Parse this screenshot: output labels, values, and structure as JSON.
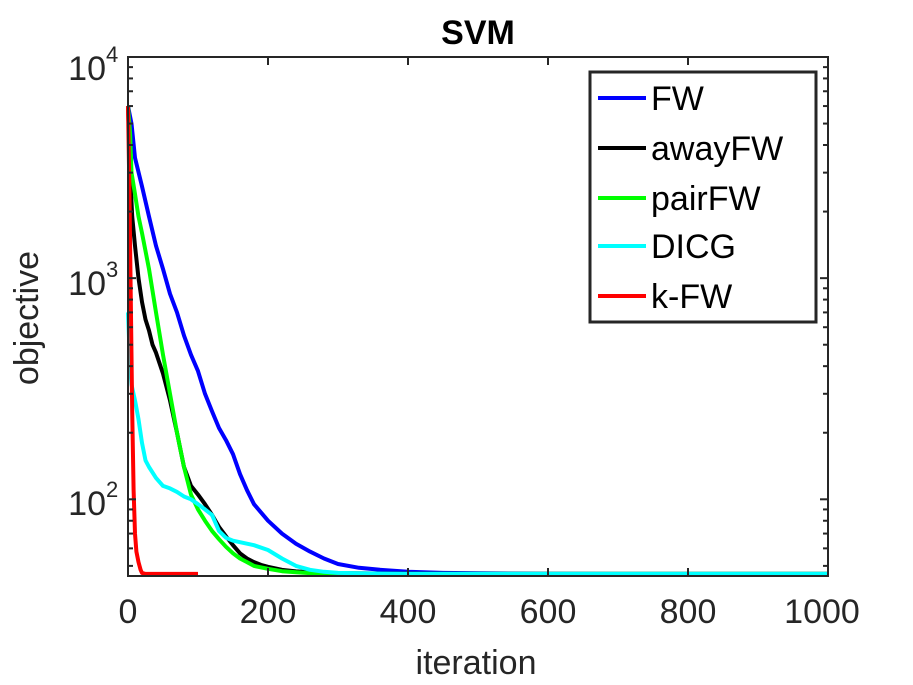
{
  "chart_data": {
    "type": "line",
    "title": "SVM",
    "xlabel": "iteration",
    "ylabel": "objective",
    "yscale": "log",
    "xlim": [
      0,
      1000
    ],
    "ylim": [
      45,
      10000
    ],
    "x_ticks": [
      0,
      200,
      400,
      600,
      800,
      1000
    ],
    "x_tick_labels": [
      "0",
      "200",
      "400",
      "600",
      "800",
      "1000"
    ],
    "y_ticks": [
      {
        "value": 100,
        "base": "10",
        "exp": "2"
      },
      {
        "value": 1000,
        "base": "10",
        "exp": "3"
      },
      {
        "value": 10000,
        "base": "10",
        "exp": "4"
      }
    ],
    "legend_position": "top-right",
    "series": [
      {
        "name": "FW",
        "color": "#0000ff",
        "x": [
          0,
          5,
          10,
          20,
          30,
          40,
          50,
          60,
          70,
          80,
          90,
          100,
          110,
          120,
          130,
          140,
          150,
          160,
          170,
          180,
          200,
          220,
          240,
          260,
          280,
          300,
          330,
          360,
          400,
          450,
          500,
          600,
          700,
          800,
          900,
          1000
        ],
        "y": [
          6000,
          5000,
          3500,
          2600,
          1900,
          1400,
          1100,
          850,
          700,
          550,
          450,
          380,
          300,
          250,
          210,
          185,
          160,
          130,
          110,
          95,
          80,
          70,
          63,
          58,
          54,
          51,
          49,
          48,
          47,
          46.5,
          46.3,
          46.1,
          46,
          46,
          46,
          46
        ]
      },
      {
        "name": "awayFW",
        "color": "#000000",
        "x": [
          0,
          3,
          6,
          10,
          15,
          20,
          25,
          30,
          35,
          40,
          50,
          60,
          70,
          80,
          90,
          100,
          110,
          120,
          130,
          140,
          150,
          160,
          170,
          180,
          190,
          200,
          220,
          240,
          260,
          300,
          400,
          500,
          1000
        ],
        "y": [
          6000,
          3000,
          1900,
          1400,
          1000,
          780,
          650,
          580,
          500,
          460,
          370,
          280,
          200,
          140,
          115,
          105,
          95,
          85,
          75,
          68,
          62,
          57,
          54,
          52,
          50.5,
          49.5,
          48,
          47.2,
          46.8,
          46.4,
          46.1,
          46,
          46
        ]
      },
      {
        "name": "pairFW",
        "color": "#00ff00",
        "x": [
          0,
          3,
          5,
          10,
          15,
          20,
          30,
          40,
          50,
          60,
          70,
          80,
          90,
          100,
          110,
          120,
          130,
          140,
          150,
          160,
          170,
          180,
          200,
          220,
          240,
          260,
          300,
          400,
          1000
        ],
        "y": [
          6000,
          4500,
          3000,
          2400,
          1900,
          1600,
          1100,
          700,
          450,
          300,
          200,
          140,
          105,
          90,
          80,
          72,
          66,
          61,
          57,
          54,
          52,
          50,
          48.5,
          47.3,
          46.8,
          46.4,
          46.1,
          46,
          46
        ]
      },
      {
        "name": "DICG",
        "color": "#00ffff",
        "x": [
          0,
          3,
          5,
          10,
          15,
          20,
          25,
          30,
          40,
          50,
          60,
          70,
          80,
          90,
          100,
          110,
          120,
          130,
          140,
          150,
          160,
          180,
          200,
          220,
          240,
          260,
          280,
          300,
          350,
          400,
          1000
        ],
        "y": [
          700,
          400,
          330,
          280,
          230,
          180,
          150,
          140,
          125,
          115,
          112,
          108,
          103,
          100,
          95,
          90,
          85,
          72,
          67,
          65,
          64,
          62,
          59,
          54,
          50,
          48,
          47,
          46.5,
          46.2,
          46,
          46
        ]
      },
      {
        "name": "k-FW",
        "color": "#ff0000",
        "x": [
          0,
          2,
          4,
          6,
          8,
          10,
          12,
          15,
          18,
          20,
          25,
          30,
          50,
          100
        ],
        "y": [
          6000,
          2500,
          800,
          250,
          110,
          70,
          58,
          52,
          48,
          46.5,
          46,
          46,
          46,
          46
        ]
      }
    ]
  }
}
